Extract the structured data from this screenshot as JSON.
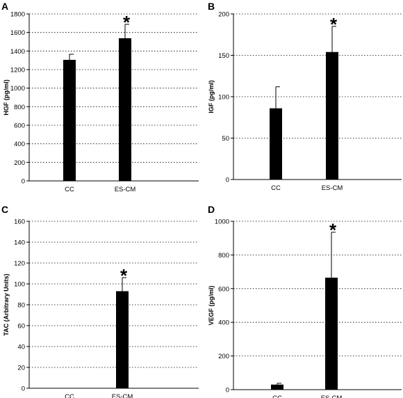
{
  "chart_data": [
    {
      "panel": "A",
      "type": "bar",
      "categories": [
        "CC",
        "ES-CM"
      ],
      "values": [
        1305,
        1538
      ],
      "errors": [
        60,
        150
      ],
      "significance": [
        "",
        "*"
      ],
      "ylabel": "HGF (pg/ml)",
      "ylim": [
        0,
        1800
      ],
      "yticks": [
        0,
        200,
        400,
        600,
        800,
        1000,
        1200,
        1400,
        1600,
        1800
      ],
      "grid": true
    },
    {
      "panel": "B",
      "type": "bar",
      "categories": [
        "CC",
        "ES-CM"
      ],
      "values": [
        86,
        154
      ],
      "errors": [
        26,
        31
      ],
      "significance": [
        "",
        "*"
      ],
      "ylabel": "IGF (pg/ml)",
      "ylim": [
        0,
        200
      ],
      "yticks": [
        0,
        50,
        100,
        150,
        200
      ],
      "grid": true
    },
    {
      "panel": "C",
      "type": "bar",
      "categories": [
        "CC",
        "ES-CM"
      ],
      "values": [
        0,
        93
      ],
      "errors": [
        0,
        13
      ],
      "significance": [
        "",
        "*"
      ],
      "ylabel": "TAC (Arbitrary Units)",
      "ylim": [
        0,
        160
      ],
      "yticks": [
        0,
        20,
        40,
        60,
        80,
        100,
        120,
        140,
        160
      ],
      "grid": true
    },
    {
      "panel": "D",
      "type": "bar",
      "categories": [
        "CC",
        "ES-CM"
      ],
      "values": [
        30,
        665
      ],
      "errors": [
        8,
        270
      ],
      "significance": [
        "",
        "*"
      ],
      "ylabel": "VEGF (pg/ml)",
      "ylim": [
        0,
        1000
      ],
      "yticks": [
        0,
        200,
        400,
        600,
        800,
        1000
      ],
      "grid": true
    }
  ]
}
